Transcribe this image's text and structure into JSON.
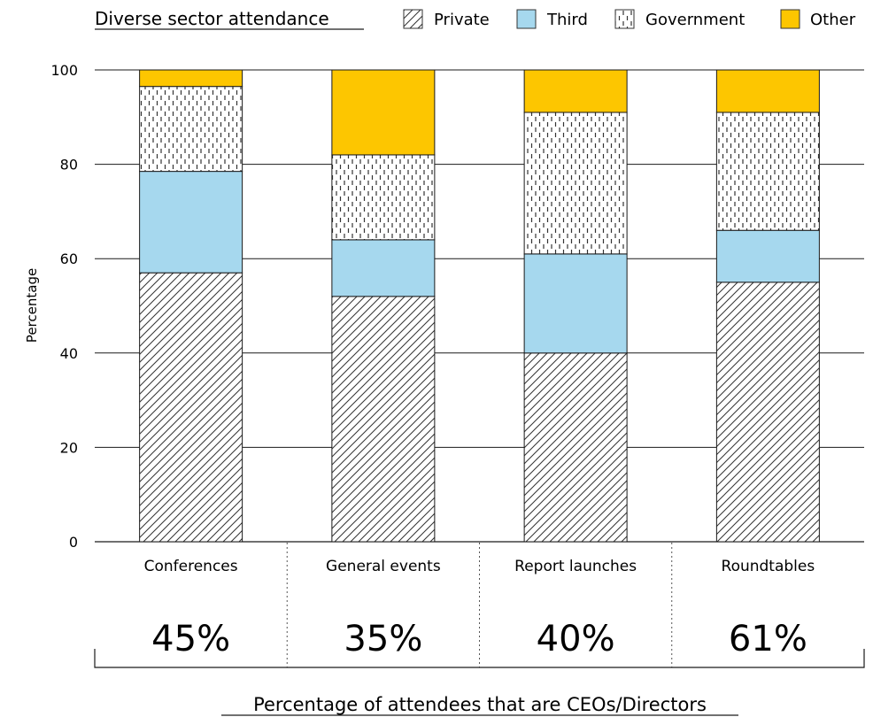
{
  "chart_data": {
    "type": "bar",
    "stacked": true,
    "title": "Diverse sector attendance",
    "ylabel": "Percentage",
    "xlabel": "",
    "ylim": [
      0,
      100
    ],
    "yticks": [
      0,
      20,
      40,
      60,
      80,
      100
    ],
    "grid": true,
    "legend_position": "top-right",
    "categories": [
      "Conferences",
      "General events",
      "Report launches",
      "Roundtables"
    ],
    "series": [
      {
        "name": "Private",
        "pattern": "diagonal-hatch",
        "color": "#ffffff",
        "values": [
          57,
          52,
          40,
          55
        ]
      },
      {
        "name": "Third",
        "pattern": "solid",
        "color": "#a6d8ee",
        "values": [
          21.5,
          12,
          21,
          11
        ]
      },
      {
        "name": "Government",
        "pattern": "dashed-vertical",
        "color": "#ffffff",
        "values": [
          18,
          18,
          30,
          25
        ]
      },
      {
        "name": "Other",
        "pattern": "solid",
        "color": "#fdc600",
        "values": [
          3.5,
          18,
          9,
          9
        ]
      }
    ],
    "ceo_director_percentages": [
      "45%",
      "35%",
      "40%",
      "61%"
    ],
    "footer_label": "Percentage of attendees that are CEOs/Directors"
  }
}
